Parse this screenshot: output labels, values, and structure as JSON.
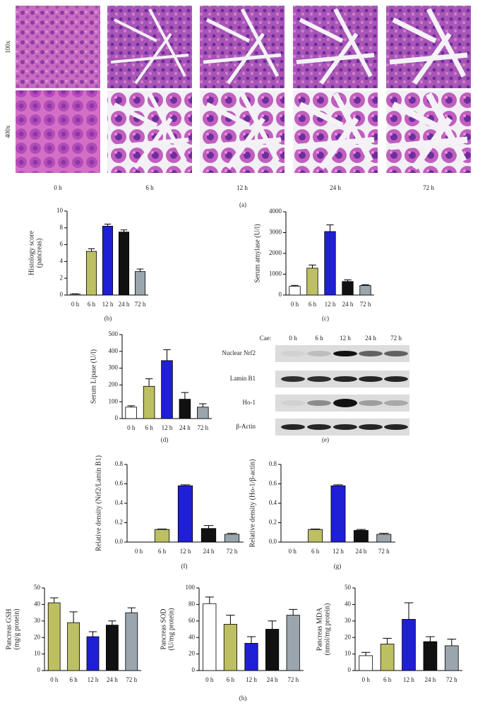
{
  "panel_a": {
    "row_labels": [
      "100x",
      "400x"
    ],
    "time_labels": [
      "0 h",
      "6 h",
      "12 h",
      "24 h",
      "72 h"
    ],
    "caption": "(a)"
  },
  "panel_e": {
    "treatment_label": "Cae:",
    "lanes": [
      "0 h",
      "6 h",
      "12 h",
      "24 h",
      "72 h"
    ],
    "rows": [
      "Nuclear Nrf2",
      "Lamin B1",
      "Ho-1",
      "β-Actin"
    ],
    "caption": "(e)"
  },
  "panel_h": {
    "caption": "(h)"
  },
  "chart_data": [
    {
      "type": "bar",
      "caption": "(b)",
      "y_label": [
        "Histology score",
        "(pancreas)"
      ],
      "categories": [
        "0 h",
        "6 h",
        "12 h",
        "24 h",
        "72 h"
      ],
      "values": [
        0.1,
        5.2,
        8.2,
        7.5,
        2.8
      ],
      "errors": [
        0.05,
        0.3,
        0.25,
        0.25,
        0.3
      ],
      "colors": [
        "#ffffff",
        "#bcc063",
        "#1f1fd6",
        "#111111",
        "#9aa5ad"
      ],
      "ylim": [
        0,
        10
      ],
      "yticks": [
        0,
        2,
        4,
        6,
        8,
        10
      ]
    },
    {
      "type": "bar",
      "caption": "(c)",
      "y_label": [
        "Serum amylase (U/l)"
      ],
      "categories": [
        "0 h",
        "6 h",
        "12 h",
        "24 h",
        "72 h"
      ],
      "values": [
        420,
        1290,
        3050,
        650,
        460
      ],
      "errors": [
        40,
        150,
        320,
        80,
        30
      ],
      "colors": [
        "#ffffff",
        "#bcc063",
        "#1f1fd6",
        "#111111",
        "#9aa5ad"
      ],
      "ylim": [
        0,
        4000
      ],
      "yticks": [
        0,
        1000,
        2000,
        3000,
        4000
      ]
    },
    {
      "type": "bar",
      "caption": "(d)",
      "y_label": [
        "Serum Lipase (U/l)"
      ],
      "categories": [
        "0 h",
        "6 h",
        "12 h",
        "24 h",
        "72 h"
      ],
      "values": [
        68,
        192,
        345,
        115,
        68
      ],
      "errors": [
        8,
        45,
        65,
        40,
        20
      ],
      "colors": [
        "#ffffff",
        "#bcc063",
        "#1f1fd6",
        "#111111",
        "#9aa5ad"
      ],
      "ylim": [
        0,
        500
      ],
      "yticks": [
        0,
        100,
        200,
        300,
        400,
        500
      ]
    },
    {
      "type": "bar",
      "caption": "(f)",
      "y_label": [
        "Relative density (Nrf2/Lamin B1)"
      ],
      "categories": [
        "0 h",
        "6 h",
        "12 h",
        "24 h",
        "72 h"
      ],
      "values": [
        0,
        0.13,
        0.58,
        0.14,
        0.08
      ],
      "errors": [
        0,
        0.005,
        0.01,
        0.03,
        0.01
      ],
      "colors": [
        "#ffffff",
        "#bcc063",
        "#1f1fd6",
        "#111111",
        "#9aa5ad"
      ],
      "ylim": [
        0,
        0.8
      ],
      "yticks": [
        {
          "value": 0,
          "label": "0.0"
        },
        0.2,
        0.4,
        0.6,
        0.8
      ]
    },
    {
      "type": "bar",
      "caption": "(g)",
      "y_label": [
        "Relative density (Ho-1/β-actin)"
      ],
      "categories": [
        "0 h",
        "6 h",
        "12 h",
        "24 h",
        "72 h"
      ],
      "values": [
        0,
        0.13,
        0.58,
        0.12,
        0.08
      ],
      "errors": [
        0,
        0.005,
        0.01,
        0.01,
        0.01
      ],
      "colors": [
        "#ffffff",
        "#bcc063",
        "#1f1fd6",
        "#111111",
        "#9aa5ad"
      ],
      "ylim": [
        0,
        0.8
      ],
      "yticks": [
        {
          "value": 0,
          "label": "0.0"
        },
        0.2,
        0.4,
        0.6,
        0.8
      ]
    },
    {
      "type": "bar",
      "y_label": [
        "Pancreas GSH",
        "(mg/g protein)"
      ],
      "categories": [
        "0 h",
        "6 h",
        "12 h",
        "24 h",
        "72 h"
      ],
      "values": [
        41,
        29,
        20.5,
        27.5,
        35
      ],
      "errors": [
        3,
        6.5,
        3,
        2.5,
        3
      ],
      "colors": [
        "#bcc063",
        "#bcc063",
        "#1f1fd6",
        "#111111",
        "#9aa5ad"
      ],
      "ylim": [
        0,
        50
      ],
      "yticks": [
        0,
        10,
        20,
        30,
        40,
        50
      ]
    },
    {
      "type": "bar",
      "y_label": [
        "Pancreas SOD",
        "(U/mg protein)"
      ],
      "categories": [
        "0 h",
        "6 h",
        "12 h",
        "24 h",
        "72 h"
      ],
      "values": [
        81,
        56,
        33,
        50,
        67
      ],
      "errors": [
        8,
        11,
        8,
        10,
        7
      ],
      "colors": [
        "#ffffff",
        "#bcc063",
        "#1f1fd6",
        "#111111",
        "#9aa5ad"
      ],
      "ylim": [
        0,
        100
      ],
      "yticks": [
        0,
        20,
        40,
        60,
        80,
        100
      ]
    },
    {
      "type": "bar",
      "y_label": [
        "Pancreas MDA",
        "(nmol/mg protein)"
      ],
      "categories": [
        "0 h",
        "6 h",
        "12 h",
        "24 h",
        "72 h"
      ],
      "values": [
        9,
        16,
        31,
        17.5,
        15
      ],
      "errors": [
        2,
        3.5,
        10,
        3,
        4
      ],
      "colors": [
        "#ffffff",
        "#bcc063",
        "#1f1fd6",
        "#111111",
        "#9aa5ad"
      ],
      "ylim": [
        0,
        50
      ],
      "yticks": [
        0,
        10,
        20,
        30,
        40,
        50
      ]
    }
  ]
}
